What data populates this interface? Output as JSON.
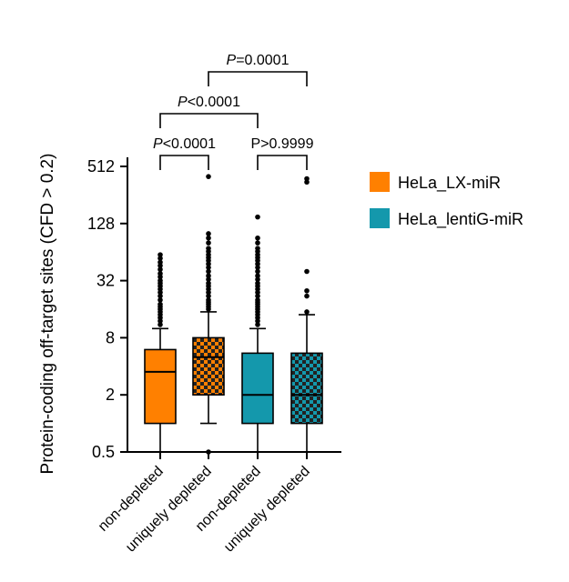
{
  "chart_data": {
    "type": "box",
    "ylabel": "Protein-coding off-target sites (CFD > 0.2)",
    "yscale": "log2",
    "ylim": [
      0.5,
      1024
    ],
    "yticks": [
      "0.5",
      "2",
      "8",
      "32",
      "128",
      "512"
    ],
    "categories": [
      "non-depleted",
      "uniquely depleted",
      "non-depleted",
      "uniquely depleted"
    ],
    "legend": {
      "placement": "right",
      "entries": [
        {
          "label": "HeLa_LX-miR",
          "color": "#ff8000"
        },
        {
          "label": "HeLa_lentiG-miR",
          "color": "#1498ac"
        }
      ]
    },
    "boxes": [
      {
        "category": "non-depleted",
        "group": "HeLa_LX-miR",
        "pattern": "solid",
        "min": 0.5,
        "q1": 1,
        "median": 3.5,
        "q3": 6,
        "max": 10,
        "outliers": [
          11,
          12,
          13,
          14,
          15,
          16,
          17,
          18,
          20,
          22,
          24,
          26,
          28,
          30,
          32,
          35,
          38,
          42,
          46,
          50,
          55,
          60
        ]
      },
      {
        "category": "uniquely depleted",
        "group": "HeLa_LX-miR",
        "pattern": "checkered",
        "min": 1,
        "q1": 2,
        "median": 5,
        "q3": 8,
        "max": 15,
        "outliers": [
          0.5,
          16,
          17,
          18,
          19,
          20,
          22,
          24,
          26,
          28,
          30,
          33,
          36,
          40,
          44,
          48,
          52,
          56,
          60,
          65,
          70,
          80,
          90,
          100,
          400
        ]
      },
      {
        "category": "non-depleted",
        "group": "HeLa_lentiG-miR",
        "pattern": "solid",
        "min": 0.5,
        "q1": 1,
        "median": 2,
        "q3": 5.5,
        "max": 10,
        "outliers": [
          11,
          12,
          13,
          14,
          15,
          16,
          17,
          18,
          19,
          20,
          22,
          24,
          26,
          28,
          30,
          33,
          36,
          40,
          44,
          48,
          52,
          56,
          60,
          65,
          70,
          80,
          90,
          150
        ]
      },
      {
        "category": "uniquely depleted",
        "group": "HeLa_lentiG-miR",
        "pattern": "checkered",
        "min": 0.5,
        "q1": 1,
        "median": 2,
        "q3": 5.5,
        "max": 14,
        "outliers": [
          15,
          22,
          25,
          40,
          350,
          380
        ]
      }
    ],
    "comparisons": [
      {
        "from": 0,
        "to": 1,
        "label": "P<0.0001"
      },
      {
        "from": 2,
        "to": 3,
        "label": "P>0.9999"
      },
      {
        "from": 0,
        "to": 2,
        "label": "P<0.0001"
      },
      {
        "from": 1,
        "to": 3,
        "label": "P=0.0001"
      }
    ]
  }
}
